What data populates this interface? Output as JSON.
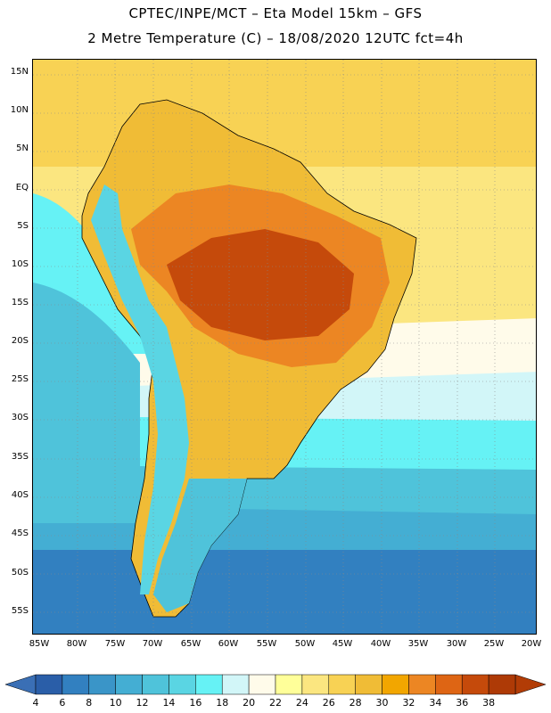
{
  "title_line1": "CPTEC/INPE/MCT –  Eta Model 15km – GFS",
  "title_line2": "2 Metre Temperature (C) – 18/08/2020 12UTC fct=4h",
  "variable": "2 Metre Temperature",
  "units": "C",
  "model": "Eta Model 15km",
  "boundary_model": "GFS",
  "institution": "CPTEC/INPE/MCT",
  "init_date": "18/08/2020 12UTC",
  "forecast_hour": "fct=4h",
  "lat_ticks": [
    "15N",
    "10N",
    "5N",
    "EQ",
    "5S",
    "10S",
    "15S",
    "20S",
    "25S",
    "30S",
    "35S",
    "40S",
    "45S",
    "50S",
    "55S"
  ],
  "lon_ticks": [
    "85W",
    "80W",
    "75W",
    "70W",
    "65W",
    "60W",
    "55W",
    "50W",
    "45W",
    "40W",
    "35W",
    "30W",
    "25W",
    "20W"
  ],
  "colorbar": {
    "labels": [
      "4",
      "6",
      "8",
      "10",
      "12",
      "14",
      "16",
      "18",
      "20",
      "22",
      "24",
      "26",
      "28",
      "30",
      "32",
      "34",
      "36",
      "38"
    ],
    "colors": [
      "#2a5ea8",
      "#3280c0",
      "#3a95c8",
      "#44aed3",
      "#4fc3da",
      "#5ad5e3",
      "#66f2f5",
      "#d2f6f8",
      "#fffbea",
      "#ffff99",
      "#fbe680",
      "#f8d254",
      "#f0bc36",
      "#f2a600",
      "#ec8623",
      "#de6514",
      "#c54a0b",
      "#ae3a06"
    ],
    "under_color": "#3a6fb5",
    "over_color": "#b23c06"
  },
  "map_colors": {
    "ocean_tropical": "#f8d254",
    "ocean_subtropical": "#fbe680",
    "ocean_mild": "#fffbea",
    "ocean_cool": "#d2f6f8",
    "ocean_temperate": "#66f2f5",
    "ocean_cold": "#4fc3da",
    "ocean_colder": "#44aed3",
    "ocean_polar": "#3280c0",
    "land_warm": "#f0bc36",
    "land_hot": "#ec8623",
    "land_hottest": "#c54a0b",
    "andes_cold": "#5ad5e3",
    "patagonia": "#4fc3da"
  }
}
